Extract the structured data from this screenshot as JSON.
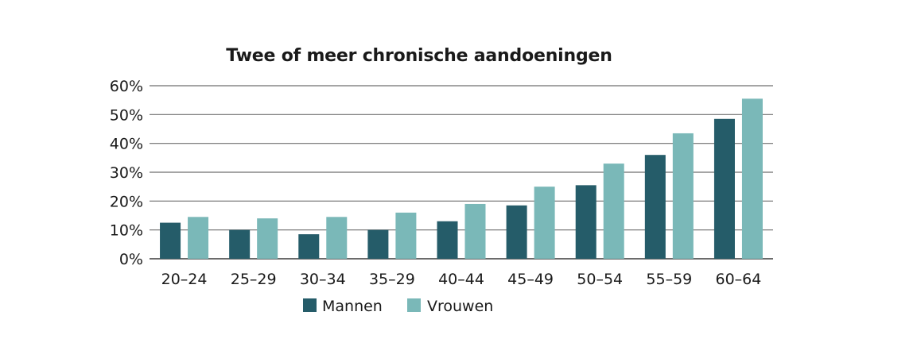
{
  "chart_data": {
    "type": "bar",
    "title": "Twee of meer chronische aandoeningen",
    "xlabel": "",
    "ylabel": "",
    "ylim": [
      0,
      60
    ],
    "yticks": [
      0,
      10,
      20,
      30,
      40,
      50,
      60
    ],
    "ytick_suffix": "%",
    "grid": true,
    "legend_position": "bottom-center",
    "categories": [
      "20–24",
      "25–29",
      "30–34",
      "35–29",
      "40–44",
      "45–49",
      "50–54",
      "55–59",
      "60–64"
    ],
    "series": [
      {
        "name": "Mannen",
        "color": "#255c69",
        "values": [
          12.5,
          10,
          8.5,
          10,
          13,
          18.5,
          25.5,
          36,
          48.5
        ]
      },
      {
        "name": "Vrouwen",
        "color": "#7ab8b8",
        "values": [
          14.5,
          14,
          14.5,
          16,
          19,
          25,
          33,
          43.5,
          55.5
        ]
      }
    ]
  }
}
